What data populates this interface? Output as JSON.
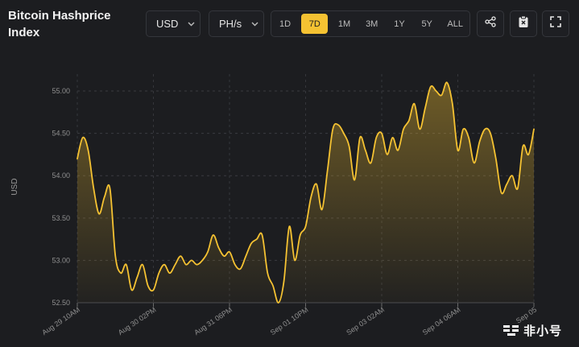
{
  "header": {
    "title": "Bitcoin Hashprice Index",
    "currency": "USD",
    "unit": "PH/s",
    "ranges": [
      "1D",
      "7D",
      "1M",
      "3M",
      "1Y",
      "5Y",
      "ALL"
    ],
    "active_range": "7D"
  },
  "icons": {
    "share": "share-icon",
    "clipboard": "clipboard-icon",
    "fullscreen": "fullscreen-icon",
    "chevron": "chevron-down-icon"
  },
  "colors": {
    "accent": "#f5c232",
    "background": "#1c1d20",
    "line": "#f5c232"
  },
  "watermark": {
    "text": "非小号"
  },
  "chart_data": {
    "type": "area",
    "ylabel": "USD",
    "xlabel": "",
    "ylim": [
      52.5,
      55.2
    ],
    "yticks": [
      "52.50",
      "53.00",
      "53.50",
      "54.00",
      "54.50",
      "55.00"
    ],
    "xticks": [
      "Aug 29 10AM",
      "Aug 30 02PM",
      "Aug 31 06PM",
      "Sep 01 10PM",
      "Sep 03 02AM",
      "Sep 04 06AM",
      "Sep 05"
    ],
    "grid": true,
    "x": [
      0,
      2,
      4,
      6,
      8,
      10,
      12,
      14,
      16,
      18,
      20,
      22,
      24,
      26,
      28,
      30,
      32,
      34,
      36,
      38,
      40,
      42,
      44,
      46,
      48,
      50,
      52,
      54,
      56,
      58,
      60,
      62,
      64,
      66,
      68,
      70,
      72,
      74,
      76,
      78,
      80,
      82,
      84,
      86,
      88,
      90,
      92,
      94,
      96,
      98,
      100,
      102,
      104,
      106,
      108,
      110,
      112,
      114,
      116,
      118,
      120,
      122,
      124,
      126,
      128,
      130,
      132,
      134,
      136,
      138,
      140,
      142,
      144,
      146,
      148,
      150,
      152,
      154,
      156,
      158,
      160,
      162,
      164,
      166,
      168
    ],
    "values": [
      54.2,
      54.45,
      54.3,
      53.85,
      53.55,
      53.75,
      53.85,
      53.05,
      52.85,
      52.95,
      52.65,
      52.8,
      52.95,
      52.7,
      52.65,
      52.85,
      52.95,
      52.85,
      52.95,
      53.05,
      52.95,
      53.0,
      52.95,
      53.0,
      53.1,
      53.3,
      53.15,
      53.05,
      53.1,
      52.95,
      52.9,
      53.05,
      53.2,
      53.25,
      53.3,
      52.85,
      52.7,
      52.5,
      52.75,
      53.4,
      53.0,
      53.3,
      53.4,
      53.75,
      53.9,
      53.6,
      54.05,
      54.55,
      54.6,
      54.5,
      54.35,
      53.95,
      54.45,
      54.3,
      54.15,
      54.45,
      54.5,
      54.25,
      54.45,
      54.3,
      54.55,
      54.65,
      54.85,
      54.55,
      54.8,
      55.05,
      55.0,
      54.95,
      55.1,
      54.85,
      54.3,
      54.55,
      54.45,
      54.15,
      54.4,
      54.55,
      54.5,
      54.2,
      53.8,
      53.9,
      54.0,
      53.85,
      54.35,
      54.25,
      54.55
    ]
  }
}
